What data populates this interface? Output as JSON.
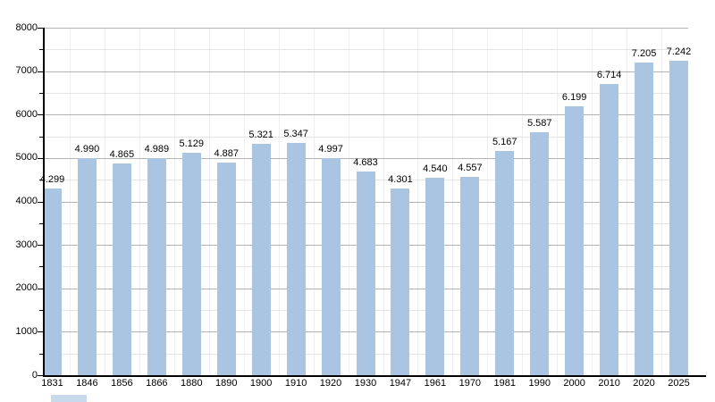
{
  "chart_data": {
    "type": "bar",
    "title": "",
    "xlabel": "",
    "ylabel": "",
    "categories": [
      "1831",
      "1846",
      "1856",
      "1866",
      "1880",
      "1890",
      "1900",
      "1910",
      "1920",
      "1930",
      "1947",
      "1961",
      "1970",
      "1981",
      "1990",
      "2000",
      "2010",
      "2020",
      "2025"
    ],
    "values": [
      4299,
      4990,
      4865,
      4989,
      5129,
      4887,
      5321,
      5347,
      4997,
      4683,
      4301,
      4540,
      4557,
      5167,
      5587,
      6199,
      6714,
      7205,
      7242
    ],
    "value_labels": [
      "4.299",
      "4.990",
      "4.865",
      "4.989",
      "5.129",
      "4.887",
      "5.321",
      "5.347",
      "4.997",
      "4.683",
      "4.301",
      "4.540",
      "4.557",
      "5.167",
      "5.587",
      "6.199",
      "6.714",
      "7.205",
      "7.242"
    ],
    "ylim": [
      0,
      8000
    ],
    "ytick_major_interval": 1000,
    "ytick_minor_interval": 500,
    "ytick_labels": [
      "0",
      "1000",
      "2000",
      "3000",
      "4000",
      "5000",
      "6000",
      "7000",
      "8000"
    ],
    "grid": "horizontal major and minor gridlines, faint vertical column separators",
    "legend": "none"
  },
  "colors": {
    "background": "#ffffff",
    "bar": "#aac5e1",
    "bar_fragment": "#b9cfe6",
    "grid_major": "#b3b3b3",
    "grid_minor": "#e5e5e5",
    "grid_vertical": "#eeeeee",
    "axis": "#000000",
    "text": "#000000"
  }
}
